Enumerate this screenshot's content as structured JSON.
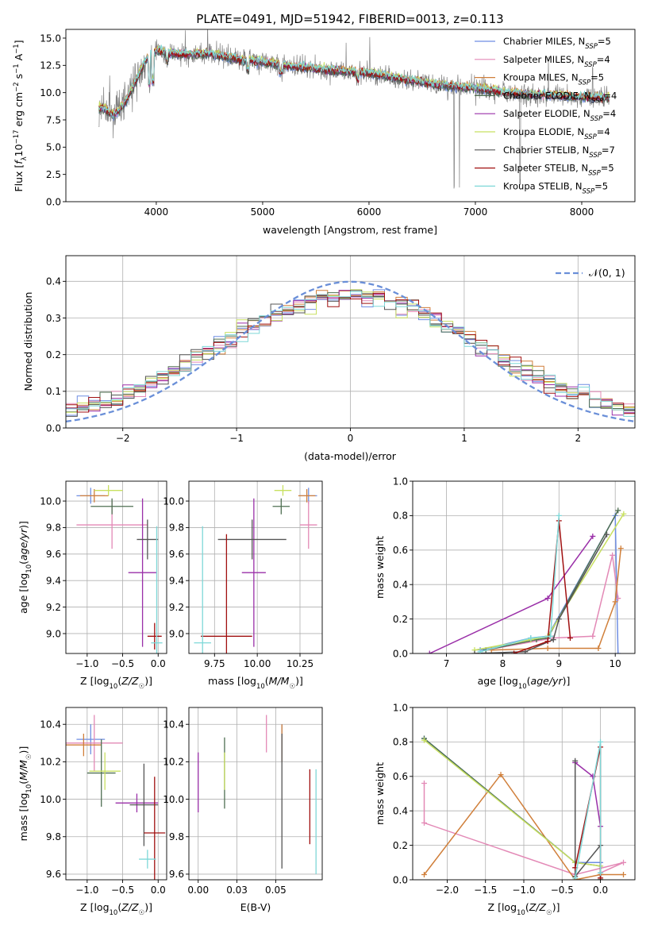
{
  "figure": {
    "title": "PLATE=0491, MJD=51942, FIBERID=0013, z=0.113"
  },
  "models": [
    {
      "name": "Chabrier MILES",
      "nssp": "5",
      "color": "#6f8ee3"
    },
    {
      "name": "Salpeter MILES",
      "nssp": "4",
      "color": "#e389b6"
    },
    {
      "name": "Kroupa MILES",
      "nssp": "5",
      "color": "#d07f3a"
    },
    {
      "name": "Chabrier ELODIE",
      "nssp": "4",
      "color": "#4f6f52"
    },
    {
      "name": "Salpeter ELODIE",
      "nssp": "4",
      "color": "#9a2fa8"
    },
    {
      "name": "Kroupa ELODIE",
      "nssp": "4",
      "color": "#c8e060"
    },
    {
      "name": "Chabrier STELIB",
      "nssp": "7",
      "color": "#555555"
    },
    {
      "name": "Salpeter STELIB",
      "nssp": "5",
      "color": "#a01010"
    },
    {
      "name": "Kroupa STELIB",
      "nssp": "5",
      "color": "#7ed8d8"
    }
  ],
  "chart_data": [
    {
      "id": "spectrum",
      "type": "line",
      "title": "PLATE=0491, MJD=51942, FIBERID=0013, z=0.113",
      "xlabel": "wavelength [Angstrom, rest frame]",
      "ylabel": "Flux [f_λ 10^-17 erg cm^-2 s^-1 A^-1]",
      "xlim": [
        3150,
        8500
      ],
      "ylim": [
        0,
        15.8
      ],
      "xticks": [
        4000,
        5000,
        6000,
        7000,
        8000
      ],
      "yticks": [
        0.0,
        2.5,
        5.0,
        7.5,
        10.0,
        12.5,
        15.0
      ],
      "data_series_color": "#808080",
      "model_wavelength": [
        3500,
        3600,
        3700,
        3800,
        3900,
        4000,
        4200,
        4500,
        4800,
        5000,
        5300,
        5600,
        6000,
        6300,
        6600,
        7000,
        7300,
        7600,
        8000,
        8250
      ],
      "model_flux": [
        8.6,
        7.9,
        9.0,
        10.9,
        13.0,
        13.9,
        13.5,
        13.6,
        13.0,
        12.8,
        12.4,
        12.1,
        11.8,
        11.3,
        10.8,
        10.4,
        10.0,
        9.8,
        9.6,
        9.5
      ],
      "legend": "upper right"
    },
    {
      "id": "residuals",
      "type": "histogram",
      "xlabel": "(data-model)/error",
      "ylabel": "Normed distribution",
      "xlim": [
        -2.5,
        2.5
      ],
      "ylim": [
        0,
        0.47
      ],
      "xticks": [
        -2,
        -1,
        0,
        1,
        2
      ],
      "yticks": [
        0.0,
        0.1,
        0.2,
        0.3,
        0.4
      ],
      "bin_width": 0.1,
      "gaussian_label": "𝒩(0, 1)",
      "gaussian_color": "#6a8fd8",
      "legend": "upper right",
      "grid": true
    },
    {
      "id": "age-vs-Z",
      "type": "errorbar",
      "xlabel": "Z [log10(Z/Z☉)]",
      "ylabel": "age  [log10(age/yr)]",
      "xlim": [
        -1.3,
        0.12
      ],
      "ylim": [
        8.85,
        10.15
      ],
      "xticks": [
        -1.0,
        -0.5,
        0.0
      ],
      "yticks": [
        9.0,
        9.2,
        9.4,
        9.6,
        9.8,
        10.0
      ],
      "points": [
        {
          "x": -0.95,
          "xerr": 0.2,
          "y": 10.04,
          "yerr": 0.06
        },
        {
          "x": -0.65,
          "xerr": 0.5,
          "y": 9.82,
          "yerr": 0.18
        },
        {
          "x": -0.9,
          "xerr": 0.2,
          "y": 10.04,
          "yerr": 0.05
        },
        {
          "x": -0.65,
          "xerr": 0.3,
          "y": 9.96,
          "yerr": 0.06
        },
        {
          "x": -0.22,
          "xerr": 0.2,
          "y": 9.46,
          "yerr": 0.56
        },
        {
          "x": -0.7,
          "xerr": 0.2,
          "y": 10.08,
          "yerr": 0.04
        },
        {
          "x": -0.15,
          "xerr": 0.15,
          "y": 9.71,
          "yerr": 0.15
        },
        {
          "x": -0.05,
          "xerr": 0.1,
          "y": 8.98,
          "yerr": 0.1
        },
        {
          "x": -0.02,
          "xerr": 0.08,
          "y": 8.93,
          "yerr": 0.88
        }
      ]
    },
    {
      "id": "age-vs-mass",
      "type": "errorbar",
      "xlabel": "mass [log10(M/M☉)]",
      "ylabel": "",
      "xlim": [
        9.6,
        10.38
      ],
      "ylim": [
        8.85,
        10.15
      ],
      "xticks": [
        9.75,
        10.0,
        10.25
      ],
      "yticks": [
        9.0,
        9.2,
        9.4,
        9.6,
        9.8,
        10.0
      ],
      "points": [
        {
          "x": 10.3,
          "xerr": 0.05,
          "y": 10.04,
          "yerr": 0.06
        },
        {
          "x": 10.3,
          "xerr": 0.05,
          "y": 9.82,
          "yerr": 0.18
        },
        {
          "x": 10.29,
          "xerr": 0.05,
          "y": 10.04,
          "yerr": 0.05
        },
        {
          "x": 10.14,
          "xerr": 0.05,
          "y": 9.96,
          "yerr": 0.06
        },
        {
          "x": 9.98,
          "xerr": 0.07,
          "y": 9.46,
          "yerr": 0.56
        },
        {
          "x": 10.15,
          "xerr": 0.05,
          "y": 10.08,
          "yerr": 0.04
        },
        {
          "x": 9.97,
          "xerr": 0.2,
          "y": 9.71,
          "yerr": 0.15
        },
        {
          "x": 9.82,
          "xerr": 0.15,
          "y": 8.98,
          "yerr": 0.77
        },
        {
          "x": 9.68,
          "xerr": 0.05,
          "y": 8.93,
          "yerr": 0.88
        }
      ]
    },
    {
      "id": "massweight-vs-age",
      "type": "line",
      "xlabel": "age  [log10(age/yr)]",
      "ylabel": "mass weight",
      "xlim": [
        6.4,
        10.35
      ],
      "ylim": [
        0,
        1.0
      ],
      "xticks": [
        7,
        8,
        9,
        10
      ],
      "yticks": [
        0.0,
        0.2,
        0.4,
        0.6,
        0.8,
        1.0
      ],
      "grid": true,
      "series": [
        {
          "x": [
            7.6,
            8.5,
            8.8,
            10.0,
            10.05
          ],
          "y": [
            0.02,
            0.09,
            0.1,
            0.8,
            0.0
          ]
        },
        {
          "x": [
            7.7,
            8.9,
            9.6,
            9.95,
            10.05
          ],
          "y": [
            0.02,
            0.09,
            0.1,
            0.57,
            0.32
          ]
        },
        {
          "x": [
            7.8,
            8.8,
            9.7,
            10.0,
            10.1
          ],
          "y": [
            0.02,
            0.03,
            0.03,
            0.3,
            0.61
          ]
        },
        {
          "x": [
            7.7,
            8.6,
            8.8,
            10.05
          ],
          "y": [
            0.02,
            0.08,
            0.09,
            0.83
          ]
        },
        {
          "x": [
            6.7,
            8.8,
            9.6
          ],
          "y": [
            0.0,
            0.32,
            0.68
          ]
        },
        {
          "x": [
            7.5,
            8.5,
            8.8,
            10.15
          ],
          "y": [
            0.02,
            0.08,
            0.1,
            0.81
          ]
        },
        {
          "x": [
            7.5,
            8.4,
            8.9,
            9.0,
            9.85
          ],
          "y": [
            0.0,
            0.01,
            0.08,
            0.2,
            0.69
          ]
        },
        {
          "x": [
            8.2,
            8.8,
            9.0,
            9.2
          ],
          "y": [
            0.0,
            0.07,
            0.77,
            0.09
          ]
        },
        {
          "x": [
            7.6,
            8.5,
            8.85,
            9.0
          ],
          "y": [
            0.01,
            0.09,
            0.1,
            0.8
          ]
        }
      ]
    },
    {
      "id": "mass-vs-Z",
      "type": "errorbar",
      "xlabel": "Z [log10(Z/Z☉)]",
      "ylabel": "mass [log10(M/M☉)]",
      "xlim": [
        -1.3,
        0.12
      ],
      "ylim": [
        9.57,
        10.49
      ],
      "xticks": [
        -1.0,
        -0.5,
        0.0
      ],
      "yticks": [
        9.6,
        9.8,
        10.0,
        10.2,
        10.4
      ],
      "points": [
        {
          "x": -0.95,
          "xerr": 0.2,
          "y": 10.32,
          "yerr": 0.08
        },
        {
          "x": -0.9,
          "xerr": 0.4,
          "y": 10.3,
          "yerr": 0.15
        },
        {
          "x": -1.05,
          "xerr": 0.25,
          "y": 10.29,
          "yerr": 0.06
        },
        {
          "x": -0.8,
          "xerr": 0.2,
          "y": 10.14,
          "yerr": 0.18
        },
        {
          "x": -0.3,
          "xerr": 0.3,
          "y": 9.98,
          "yerr": 0.05
        },
        {
          "x": -0.75,
          "xerr": 0.22,
          "y": 10.15,
          "yerr": 0.1
        },
        {
          "x": -0.2,
          "xerr": 0.2,
          "y": 9.97,
          "yerr": 0.22
        },
        {
          "x": -0.05,
          "xerr": 0.15,
          "y": 9.82,
          "yerr": 0.3
        },
        {
          "x": -0.15,
          "xerr": 0.12,
          "y": 9.68,
          "yerr": 0.05
        }
      ]
    },
    {
      "id": "mass-vs-EBV",
      "type": "errorbar",
      "xlabel": "E(B-V)",
      "ylabel": "",
      "xlim": [
        -0.006,
        0.08
      ],
      "ylim": [
        9.57,
        10.49
      ],
      "xticks": [
        0.0,
        0.025,
        0.05
      ],
      "yticks": [
        9.6,
        9.8,
        10.0,
        10.2,
        10.4
      ],
      "points": [
        {
          "x": 0.054,
          "y": 10.3,
          "yerr": 0.1
        },
        {
          "x": 0.044,
          "y": 10.35,
          "yerr": 0.1
        },
        {
          "x": 0.054,
          "y": 10.3,
          "yerr": 0.1
        },
        {
          "x": 0.017,
          "y": 10.14,
          "yerr": 0.19
        },
        {
          "x": 0.0,
          "y": 10.09,
          "yerr": 0.16
        },
        {
          "x": 0.017,
          "y": 10.15,
          "yerr": 0.1
        },
        {
          "x": 0.054,
          "y": 9.99,
          "yerr": 0.36
        },
        {
          "x": 0.072,
          "y": 9.96,
          "yerr": 0.2
        },
        {
          "x": 0.076,
          "y": 9.88,
          "yerr": 0.28
        }
      ]
    },
    {
      "id": "massweight-vs-Z",
      "type": "line",
      "xlabel": "Z [log10(Z/Z☉)]",
      "ylabel": "mass weight",
      "xlim": [
        -2.45,
        0.45
      ],
      "ylim": [
        0,
        1.0
      ],
      "xticks": [
        -2.0,
        -1.5,
        -1.0,
        -0.5,
        0.0
      ],
      "yticks": [
        0.0,
        0.2,
        0.4,
        0.6,
        0.8,
        1.0
      ],
      "grid": true,
      "series": [
        {
          "x": [
            -2.3,
            -0.33,
            0.0,
            0.0
          ],
          "y": [
            0.82,
            0.1,
            0.1,
            0.0
          ]
        },
        {
          "x": [
            -2.3,
            -2.3,
            -0.33,
            0.3,
            0.0
          ],
          "y": [
            0.56,
            0.33,
            0.03,
            0.1,
            0.04
          ]
        },
        {
          "x": [
            -2.3,
            -1.3,
            -0.33,
            0.0,
            0.3
          ],
          "y": [
            0.03,
            0.61,
            0.0,
            0.03,
            0.03
          ]
        },
        {
          "x": [
            -2.3,
            -0.33,
            0.0,
            0.0
          ],
          "y": [
            0.82,
            0.1,
            0.08,
            0.0
          ]
        },
        {
          "x": [
            -0.33,
            -0.1,
            0.0
          ],
          "y": [
            0.68,
            0.6,
            0.31
          ]
        },
        {
          "x": [
            -2.3,
            -0.33,
            0.0,
            0.0
          ],
          "y": [
            0.81,
            0.1,
            0.08,
            0.0
          ]
        },
        {
          "x": [
            -0.33,
            -0.33,
            0.0,
            0.0
          ],
          "y": [
            0.69,
            0.02,
            0.2,
            0.0
          ]
        },
        {
          "x": [
            -0.33,
            0.0,
            0.0
          ],
          "y": [
            0.07,
            0.77,
            0.01
          ]
        },
        {
          "x": [
            -0.33,
            0.0,
            0.0
          ],
          "y": [
            0.01,
            0.8,
            0.04
          ]
        }
      ]
    }
  ]
}
